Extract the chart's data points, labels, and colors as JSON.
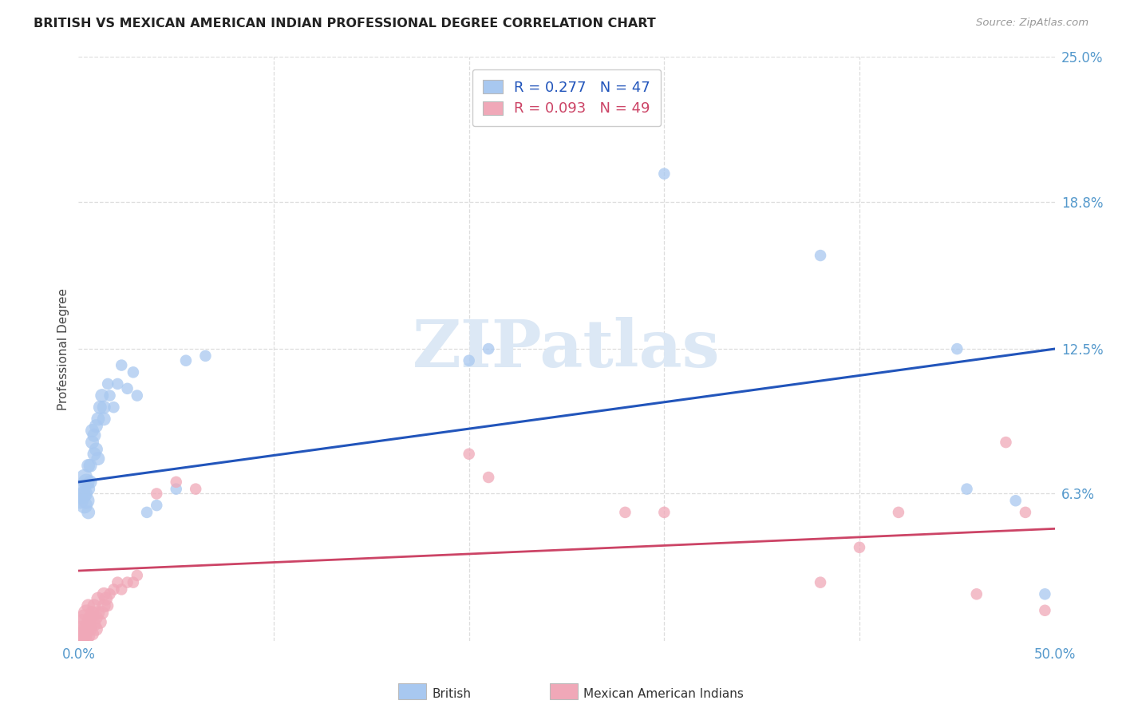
{
  "title": "BRITISH VS MEXICAN AMERICAN INDIAN PROFESSIONAL DEGREE CORRELATION CHART",
  "source": "Source: ZipAtlas.com",
  "ylabel": "Professional Degree",
  "xlim": [
    0,
    0.5
  ],
  "ylim": [
    0,
    0.25
  ],
  "british_R": 0.277,
  "british_N": 47,
  "mexican_R": 0.093,
  "mexican_N": 49,
  "british_color": "#A8C8F0",
  "mexican_color": "#F0A8B8",
  "british_line_color": "#2255BB",
  "mexican_line_color": "#CC4466",
  "watermark_color": "#DCE8F5",
  "background_color": "#FFFFFF",
  "tick_color": "#5599CC",
  "label_color": "#444444",
  "grid_color": "#DDDDDD",
  "brit_x": [
    0.001,
    0.002,
    0.002,
    0.003,
    0.003,
    0.003,
    0.004,
    0.004,
    0.005,
    0.005,
    0.005,
    0.006,
    0.006,
    0.007,
    0.007,
    0.008,
    0.008,
    0.009,
    0.009,
    0.01,
    0.01,
    0.011,
    0.012,
    0.013,
    0.013,
    0.015,
    0.016,
    0.018,
    0.02,
    0.022,
    0.025,
    0.028,
    0.03,
    0.035,
    0.04,
    0.05,
    0.055,
    0.065,
    0.2,
    0.21,
    0.29,
    0.3,
    0.38,
    0.45,
    0.455,
    0.48,
    0.495
  ],
  "brit_y": [
    0.06,
    0.062,
    0.065,
    0.058,
    0.063,
    0.07,
    0.06,
    0.068,
    0.055,
    0.065,
    0.075,
    0.068,
    0.075,
    0.085,
    0.09,
    0.08,
    0.088,
    0.082,
    0.092,
    0.078,
    0.095,
    0.1,
    0.105,
    0.095,
    0.1,
    0.11,
    0.105,
    0.1,
    0.11,
    0.118,
    0.108,
    0.115,
    0.105,
    0.055,
    0.058,
    0.065,
    0.12,
    0.122,
    0.12,
    0.125,
    0.24,
    0.2,
    0.165,
    0.125,
    0.065,
    0.06,
    0.02
  ],
  "mex_x": [
    0.001,
    0.001,
    0.002,
    0.002,
    0.003,
    0.003,
    0.003,
    0.004,
    0.004,
    0.005,
    0.005,
    0.005,
    0.006,
    0.006,
    0.007,
    0.007,
    0.008,
    0.008,
    0.009,
    0.009,
    0.01,
    0.01,
    0.011,
    0.012,
    0.013,
    0.013,
    0.014,
    0.015,
    0.016,
    0.018,
    0.02,
    0.022,
    0.025,
    0.028,
    0.03,
    0.04,
    0.05,
    0.06,
    0.2,
    0.21,
    0.28,
    0.3,
    0.38,
    0.4,
    0.42,
    0.46,
    0.475,
    0.485,
    0.495
  ],
  "mex_y": [
    0.0,
    0.005,
    0.002,
    0.008,
    0.0,
    0.003,
    0.01,
    0.005,
    0.012,
    0.002,
    0.008,
    0.015,
    0.005,
    0.01,
    0.003,
    0.012,
    0.007,
    0.015,
    0.005,
    0.01,
    0.012,
    0.018,
    0.008,
    0.012,
    0.015,
    0.02,
    0.018,
    0.015,
    0.02,
    0.022,
    0.025,
    0.022,
    0.025,
    0.025,
    0.028,
    0.063,
    0.068,
    0.065,
    0.08,
    0.07,
    0.055,
    0.055,
    0.025,
    0.04,
    0.055,
    0.02,
    0.085,
    0.055,
    0.013
  ],
  "brit_line_x0": 0.0,
  "brit_line_y0": 0.068,
  "brit_line_x1": 0.5,
  "brit_line_y1": 0.125,
  "mex_line_x0": 0.0,
  "mex_line_y0": 0.03,
  "mex_line_x1": 0.5,
  "mex_line_y1": 0.048
}
